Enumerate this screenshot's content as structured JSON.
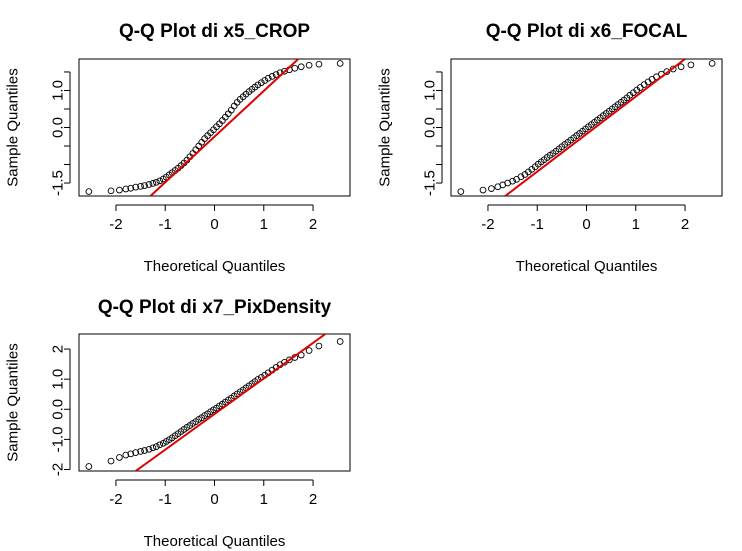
{
  "chart_data": [
    {
      "type": "scatter",
      "title": "Q-Q Plot di x5_CROP",
      "xlabel": "Theoretical Quantiles",
      "ylabel": "Sample Quantiles",
      "xlim": [
        -2.75,
        2.75
      ],
      "ylim": [
        -1.85,
        1.85
      ],
      "xticks": [
        -2,
        -1,
        0,
        1,
        2
      ],
      "yticks": [
        -1.5,
        0.0,
        1.0
      ],
      "yticks_minor": [
        -1.0,
        -0.5,
        0.5,
        1.5
      ],
      "qq_line": {
        "color": "#e00000",
        "points": [
          [
            -1.3,
            -1.85
          ],
          [
            1.7,
            1.85
          ]
        ]
      },
      "points": [
        [
          -2.55,
          -1.73
        ],
        [
          -2.1,
          -1.71
        ],
        [
          -1.93,
          -1.69
        ],
        [
          -1.8,
          -1.66
        ],
        [
          -1.7,
          -1.64
        ],
        [
          -1.6,
          -1.61
        ],
        [
          -1.5,
          -1.59
        ],
        [
          -1.42,
          -1.57
        ],
        [
          -1.33,
          -1.54
        ],
        [
          -1.25,
          -1.51
        ],
        [
          -1.18,
          -1.48
        ],
        [
          -1.11,
          -1.44
        ],
        [
          -1.04,
          -1.39
        ],
        [
          -0.98,
          -1.34
        ],
        [
          -0.92,
          -1.28
        ],
        [
          -0.86,
          -1.22
        ],
        [
          -0.8,
          -1.16
        ],
        [
          -0.74,
          -1.1
        ],
        [
          -0.68,
          -1.03
        ],
        [
          -0.62,
          -0.96
        ],
        [
          -0.56,
          -0.88
        ],
        [
          -0.5,
          -0.79
        ],
        [
          -0.44,
          -0.7
        ],
        [
          -0.38,
          -0.6
        ],
        [
          -0.32,
          -0.5
        ],
        [
          -0.26,
          -0.4
        ],
        [
          -0.2,
          -0.3
        ],
        [
          -0.14,
          -0.22
        ],
        [
          -0.08,
          -0.14
        ],
        [
          -0.02,
          -0.06
        ],
        [
          0.04,
          0.02
        ],
        [
          0.1,
          0.1
        ],
        [
          0.16,
          0.19
        ],
        [
          0.22,
          0.28
        ],
        [
          0.28,
          0.37
        ],
        [
          0.34,
          0.47
        ],
        [
          0.4,
          0.58
        ],
        [
          0.46,
          0.68
        ],
        [
          0.52,
          0.76
        ],
        [
          0.58,
          0.83
        ],
        [
          0.64,
          0.9
        ],
        [
          0.7,
          0.97
        ],
        [
          0.76,
          1.03
        ],
        [
          0.82,
          1.09
        ],
        [
          0.88,
          1.15
        ],
        [
          0.95,
          1.21
        ],
        [
          1.02,
          1.27
        ],
        [
          1.09,
          1.33
        ],
        [
          1.17,
          1.38
        ],
        [
          1.25,
          1.43
        ],
        [
          1.33,
          1.48
        ],
        [
          1.42,
          1.52
        ],
        [
          1.52,
          1.56
        ],
        [
          1.63,
          1.6
        ],
        [
          1.76,
          1.64
        ],
        [
          1.92,
          1.68
        ],
        [
          2.12,
          1.71
        ],
        [
          2.55,
          1.73
        ]
      ]
    },
    {
      "type": "scatter",
      "title": "Q-Q Plot di x6_FOCAL",
      "xlabel": "Theoretical Quantiles",
      "ylabel": "Sample Quantiles",
      "xlim": [
        -2.75,
        2.75
      ],
      "ylim": [
        -1.85,
        1.85
      ],
      "xticks": [
        -2,
        -1,
        0,
        1,
        2
      ],
      "yticks": [
        -1.5,
        0.0,
        1.0
      ],
      "yticks_minor": [
        -1.0,
        -0.5,
        0.5,
        1.5
      ],
      "qq_line": {
        "color": "#e00000",
        "points": [
          [
            -1.65,
            -1.85
          ],
          [
            2.0,
            1.85
          ]
        ]
      },
      "points": [
        [
          -2.55,
          -1.73
        ],
        [
          -2.1,
          -1.69
        ],
        [
          -1.93,
          -1.65
        ],
        [
          -1.8,
          -1.6
        ],
        [
          -1.7,
          -1.55
        ],
        [
          -1.6,
          -1.5
        ],
        [
          -1.5,
          -1.45
        ],
        [
          -1.42,
          -1.4
        ],
        [
          -1.33,
          -1.33
        ],
        [
          -1.25,
          -1.27
        ],
        [
          -1.18,
          -1.2
        ],
        [
          -1.11,
          -1.13
        ],
        [
          -1.04,
          -1.06
        ],
        [
          -0.98,
          -0.99
        ],
        [
          -0.92,
          -0.93
        ],
        [
          -0.86,
          -0.87
        ],
        [
          -0.8,
          -0.81
        ],
        [
          -0.74,
          -0.75
        ],
        [
          -0.68,
          -0.7
        ],
        [
          -0.62,
          -0.64
        ],
        [
          -0.56,
          -0.58
        ],
        [
          -0.5,
          -0.52
        ],
        [
          -0.44,
          -0.46
        ],
        [
          -0.38,
          -0.4
        ],
        [
          -0.32,
          -0.34
        ],
        [
          -0.26,
          -0.28
        ],
        [
          -0.2,
          -0.22
        ],
        [
          -0.14,
          -0.16
        ],
        [
          -0.08,
          -0.1
        ],
        [
          -0.02,
          -0.04
        ],
        [
          0.04,
          0.02
        ],
        [
          0.1,
          0.08
        ],
        [
          0.16,
          0.14
        ],
        [
          0.22,
          0.2
        ],
        [
          0.28,
          0.26
        ],
        [
          0.34,
          0.32
        ],
        [
          0.4,
          0.38
        ],
        [
          0.46,
          0.44
        ],
        [
          0.52,
          0.5
        ],
        [
          0.58,
          0.56
        ],
        [
          0.64,
          0.62
        ],
        [
          0.7,
          0.68
        ],
        [
          0.76,
          0.74
        ],
        [
          0.82,
          0.8
        ],
        [
          0.88,
          0.87
        ],
        [
          0.95,
          0.94
        ],
        [
          1.02,
          1.01
        ],
        [
          1.09,
          1.08
        ],
        [
          1.17,
          1.16
        ],
        [
          1.25,
          1.23
        ],
        [
          1.33,
          1.3
        ],
        [
          1.42,
          1.37
        ],
        [
          1.52,
          1.44
        ],
        [
          1.63,
          1.51
        ],
        [
          1.76,
          1.58
        ],
        [
          1.92,
          1.64
        ],
        [
          2.12,
          1.69
        ],
        [
          2.55,
          1.73
        ]
      ]
    },
    {
      "type": "scatter",
      "title": "Q-Q Plot di x7_PixDensity",
      "xlabel": "Theoretical Quantiles",
      "ylabel": "Sample Quantiles",
      "xlim": [
        -2.75,
        2.75
      ],
      "ylim": [
        -2.05,
        2.5
      ],
      "xticks": [
        -2,
        -1,
        0,
        1,
        2
      ],
      "yticks": [
        -2,
        -1,
        0,
        1,
        2
      ],
      "qq_line": {
        "color": "#e00000",
        "points": [
          [
            -1.6,
            -2.05
          ],
          [
            2.25,
            2.5
          ]
        ]
      },
      "points": [
        [
          -2.55,
          -1.9
        ],
        [
          -2.1,
          -1.72
        ],
        [
          -1.93,
          -1.6
        ],
        [
          -1.8,
          -1.52
        ],
        [
          -1.7,
          -1.48
        ],
        [
          -1.6,
          -1.44
        ],
        [
          -1.5,
          -1.4
        ],
        [
          -1.42,
          -1.37
        ],
        [
          -1.33,
          -1.33
        ],
        [
          -1.25,
          -1.28
        ],
        [
          -1.18,
          -1.24
        ],
        [
          -1.11,
          -1.18
        ],
        [
          -1.04,
          -1.13
        ],
        [
          -0.98,
          -1.07
        ],
        [
          -0.92,
          -1.01
        ],
        [
          -0.86,
          -0.95
        ],
        [
          -0.8,
          -0.88
        ],
        [
          -0.74,
          -0.81
        ],
        [
          -0.68,
          -0.74
        ],
        [
          -0.62,
          -0.67
        ],
        [
          -0.56,
          -0.6
        ],
        [
          -0.5,
          -0.54
        ],
        [
          -0.44,
          -0.47
        ],
        [
          -0.38,
          -0.41
        ],
        [
          -0.32,
          -0.34
        ],
        [
          -0.26,
          -0.28
        ],
        [
          -0.2,
          -0.21
        ],
        [
          -0.14,
          -0.15
        ],
        [
          -0.08,
          -0.08
        ],
        [
          -0.02,
          -0.02
        ],
        [
          0.04,
          0.04
        ],
        [
          0.1,
          0.11
        ],
        [
          0.16,
          0.17
        ],
        [
          0.22,
          0.24
        ],
        [
          0.28,
          0.31
        ],
        [
          0.34,
          0.37
        ],
        [
          0.4,
          0.44
        ],
        [
          0.46,
          0.51
        ],
        [
          0.52,
          0.58
        ],
        [
          0.58,
          0.64
        ],
        [
          0.64,
          0.71
        ],
        [
          0.7,
          0.78
        ],
        [
          0.76,
          0.85
        ],
        [
          0.82,
          0.92
        ],
        [
          0.88,
          0.99
        ],
        [
          0.95,
          1.06
        ],
        [
          1.02,
          1.13
        ],
        [
          1.09,
          1.21
        ],
        [
          1.17,
          1.3
        ],
        [
          1.25,
          1.39
        ],
        [
          1.33,
          1.48
        ],
        [
          1.42,
          1.56
        ],
        [
          1.52,
          1.64
        ],
        [
          1.63,
          1.72
        ],
        [
          1.76,
          1.8
        ],
        [
          1.92,
          1.95
        ],
        [
          2.12,
          2.1
        ],
        [
          2.55,
          2.25
        ]
      ]
    }
  ]
}
